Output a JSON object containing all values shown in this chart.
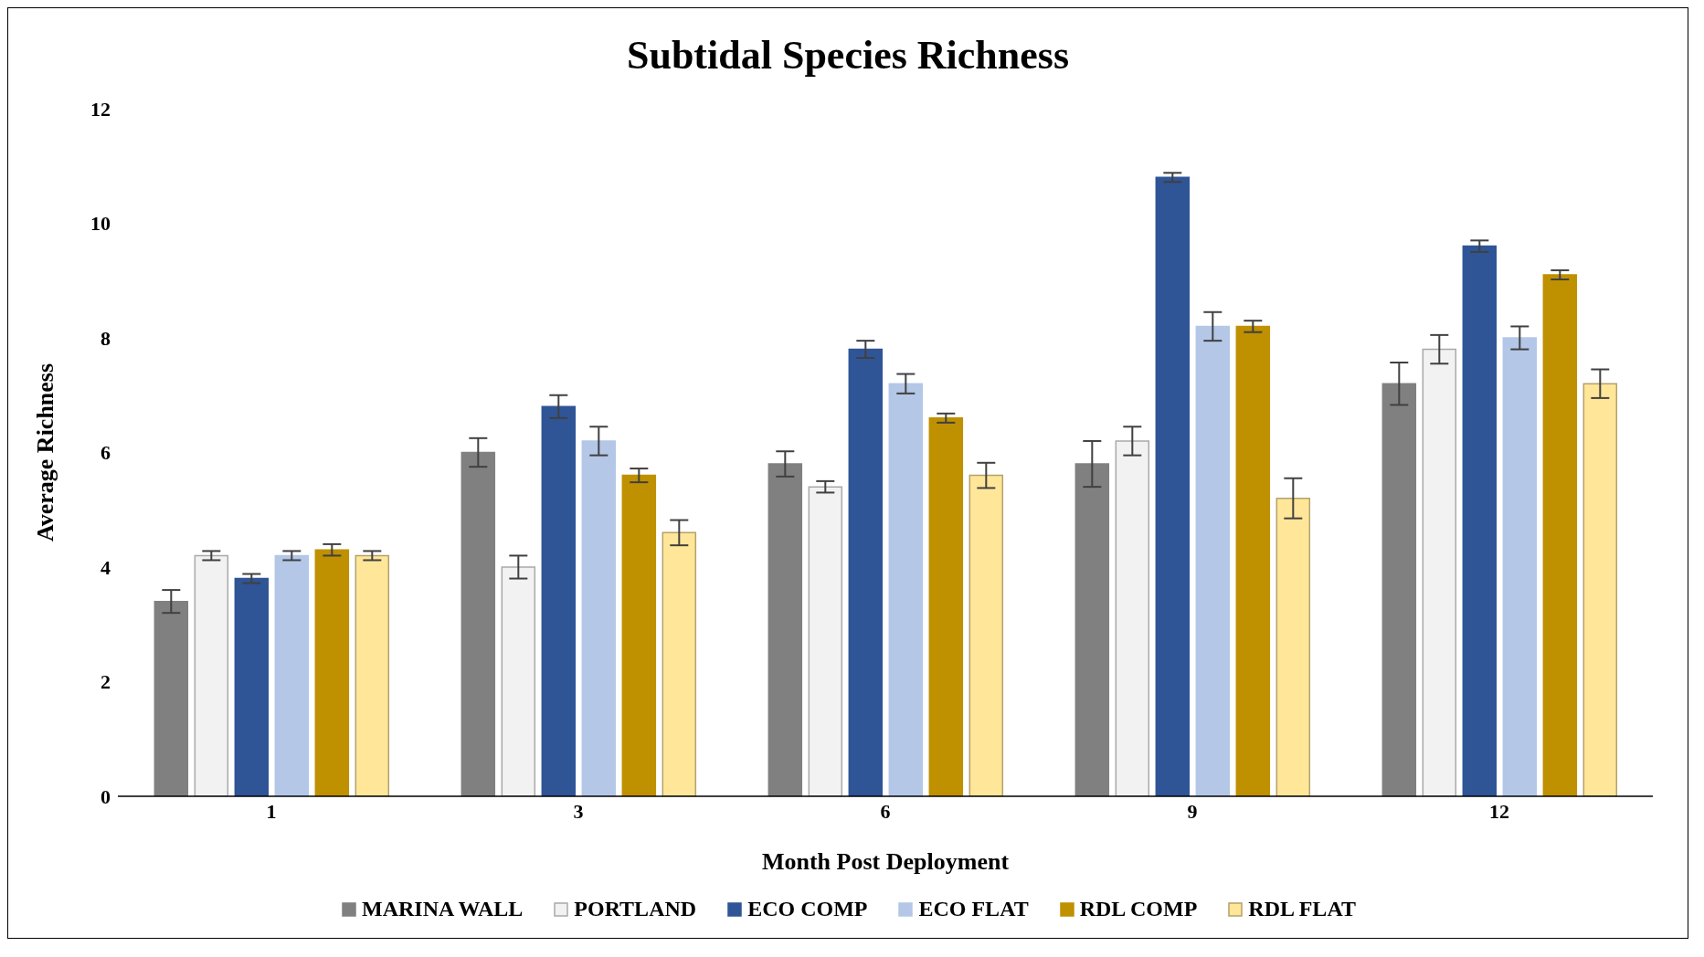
{
  "chart_data": {
    "type": "bar",
    "title": "Subtidal Species Richness",
    "xlabel": "Month Post Deployment",
    "ylabel": "Average Richness",
    "categories": [
      "1",
      "3",
      "6",
      "9",
      "12"
    ],
    "series": [
      {
        "name": "MARINA WALL",
        "color": "#808080",
        "values": [
          3.4,
          6.0,
          5.8,
          5.8,
          7.2
        ],
        "errors": [
          0.2,
          0.25,
          0.22,
          0.4,
          0.37
        ]
      },
      {
        "name": "PORTLAND",
        "color": "#f2f2f2",
        "values": [
          4.2,
          4.0,
          5.4,
          6.2,
          7.8
        ],
        "errors": [
          0.08,
          0.2,
          0.1,
          0.25,
          0.25
        ]
      },
      {
        "name": "ECO COMP",
        "color": "#2f5597",
        "values": [
          3.8,
          6.8,
          7.8,
          10.8,
          9.6
        ],
        "errors": [
          0.08,
          0.2,
          0.15,
          0.08,
          0.1
        ]
      },
      {
        "name": "ECO FLAT",
        "color": "#b4c7e7",
        "values": [
          4.2,
          6.2,
          7.2,
          8.2,
          8.0
        ],
        "errors": [
          0.08,
          0.25,
          0.17,
          0.25,
          0.2
        ]
      },
      {
        "name": "RDL COMP",
        "color": "#bf9000",
        "values": [
          4.3,
          5.6,
          6.6,
          8.2,
          9.1
        ],
        "errors": [
          0.1,
          0.12,
          0.08,
          0.1,
          0.08
        ]
      },
      {
        "name": "RDL FLAT",
        "color": "#ffe699",
        "values": [
          4.2,
          4.6,
          5.6,
          5.2,
          7.2
        ],
        "errors": [
          0.08,
          0.22,
          0.22,
          0.35,
          0.25
        ]
      }
    ],
    "ylim": [
      0,
      12
    ],
    "yticks": [
      0,
      2,
      4,
      6,
      8,
      10,
      12
    ],
    "grid": false,
    "legend": "bottom"
  }
}
